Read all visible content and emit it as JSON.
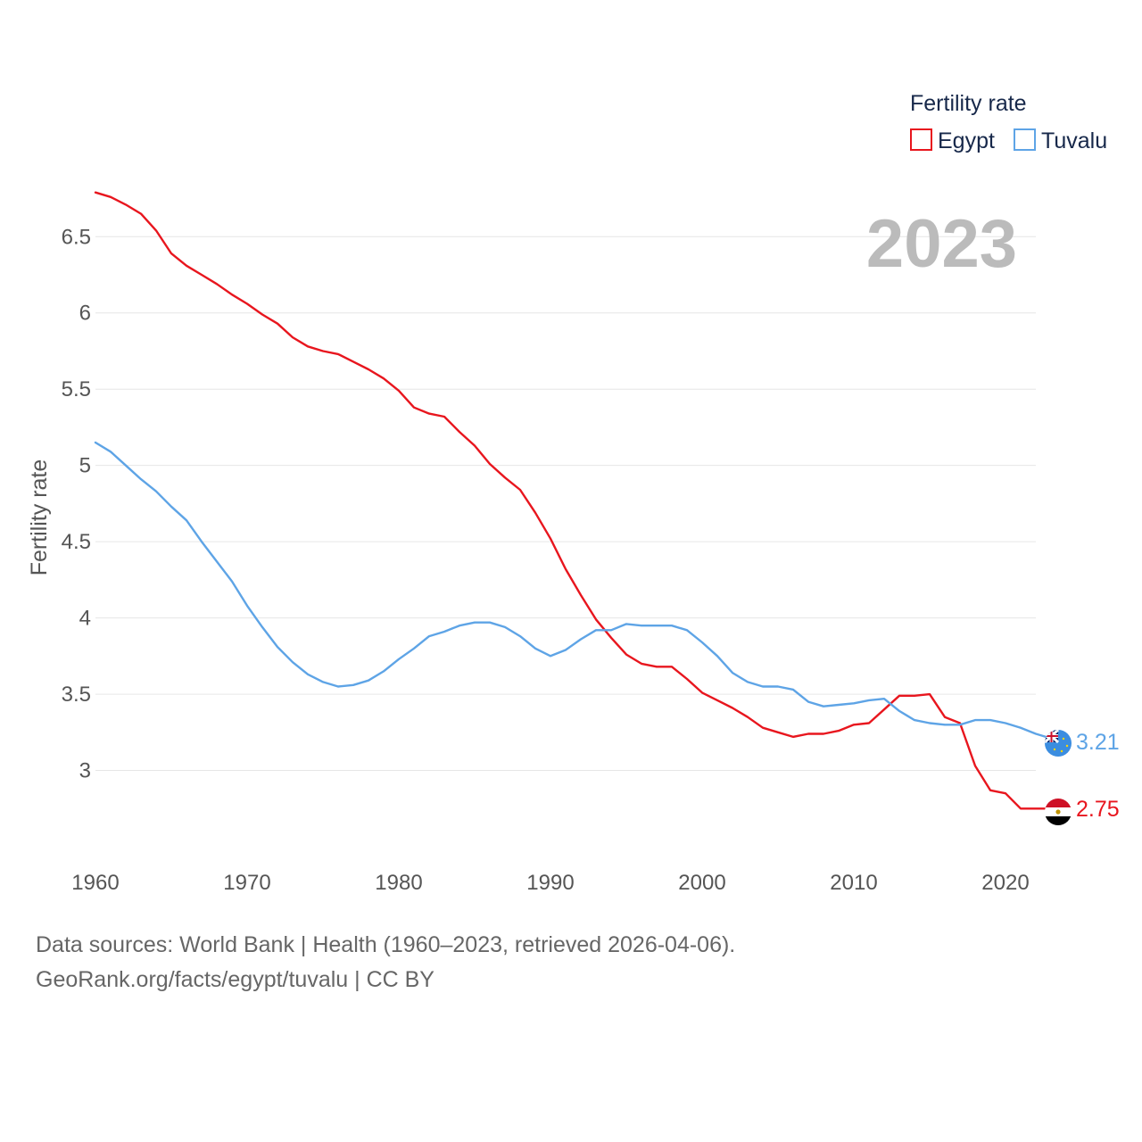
{
  "chart_data": {
    "type": "line",
    "title": "Fertility rate",
    "ylabel": "Fertility rate",
    "xlabel": "",
    "current_year": "2023",
    "xlim": [
      1960,
      2023
    ],
    "ylim": [
      2.5,
      6.8
    ],
    "y_ticks": [
      3,
      3.5,
      4,
      4.5,
      5,
      5.5,
      6,
      6.5
    ],
    "x_ticks": [
      1960,
      1970,
      1980,
      1990,
      2000,
      2010,
      2020
    ],
    "grid": true,
    "legend_position": "top-right",
    "x": [
      1960,
      1961,
      1962,
      1963,
      1964,
      1965,
      1966,
      1967,
      1968,
      1969,
      1970,
      1971,
      1972,
      1973,
      1974,
      1975,
      1976,
      1977,
      1978,
      1979,
      1980,
      1981,
      1982,
      1983,
      1984,
      1985,
      1986,
      1987,
      1988,
      1989,
      1990,
      1991,
      1992,
      1993,
      1994,
      1995,
      1996,
      1997,
      1998,
      1999,
      2000,
      2001,
      2002,
      2003,
      2004,
      2005,
      2006,
      2007,
      2008,
      2009,
      2010,
      2011,
      2012,
      2013,
      2014,
      2015,
      2016,
      2017,
      2018,
      2019,
      2020,
      2021,
      2022,
      2023
    ],
    "series": [
      {
        "name": "Egypt",
        "color": "#e8161e",
        "end_label": "2.75",
        "values": [
          6.79,
          6.76,
          6.71,
          6.65,
          6.54,
          6.39,
          6.31,
          6.25,
          6.19,
          6.12,
          6.06,
          5.99,
          5.93,
          5.84,
          5.78,
          5.75,
          5.73,
          5.68,
          5.63,
          5.57,
          5.49,
          5.38,
          5.34,
          5.32,
          5.22,
          5.13,
          5.01,
          4.92,
          4.84,
          4.69,
          4.52,
          4.32,
          4.15,
          3.99,
          3.87,
          3.76,
          3.7,
          3.68,
          3.68,
          3.6,
          3.51,
          3.46,
          3.41,
          3.35,
          3.28,
          3.25,
          3.22,
          3.24,
          3.24,
          3.26,
          3.3,
          3.31,
          3.4,
          3.49,
          3.49,
          3.5,
          3.35,
          3.31,
          3.03,
          2.87,
          2.85,
          2.75,
          2.75,
          2.75
        ]
      },
      {
        "name": "Tuvalu",
        "color": "#5ea4e6",
        "end_label": "3.21",
        "values": [
          5.15,
          5.09,
          5.0,
          4.91,
          4.83,
          4.73,
          4.64,
          4.5,
          4.37,
          4.24,
          4.08,
          3.94,
          3.81,
          3.71,
          3.63,
          3.58,
          3.55,
          3.56,
          3.59,
          3.65,
          3.73,
          3.8,
          3.88,
          3.91,
          3.95,
          3.97,
          3.97,
          3.94,
          3.88,
          3.8,
          3.75,
          3.79,
          3.86,
          3.92,
          3.92,
          3.96,
          3.95,
          3.95,
          3.95,
          3.92,
          3.84,
          3.75,
          3.64,
          3.58,
          3.55,
          3.55,
          3.53,
          3.45,
          3.42,
          3.43,
          3.44,
          3.46,
          3.47,
          3.39,
          3.33,
          3.31,
          3.3,
          3.3,
          3.33,
          3.33,
          3.31,
          3.28,
          3.24,
          3.21
        ]
      }
    ]
  },
  "footer": {
    "line1": "Data sources: World Bank | Health (1960–2023, retrieved 2026-04-06).",
    "line2": "GeoRank.org/facts/egypt/tuvalu | CC BY"
  }
}
